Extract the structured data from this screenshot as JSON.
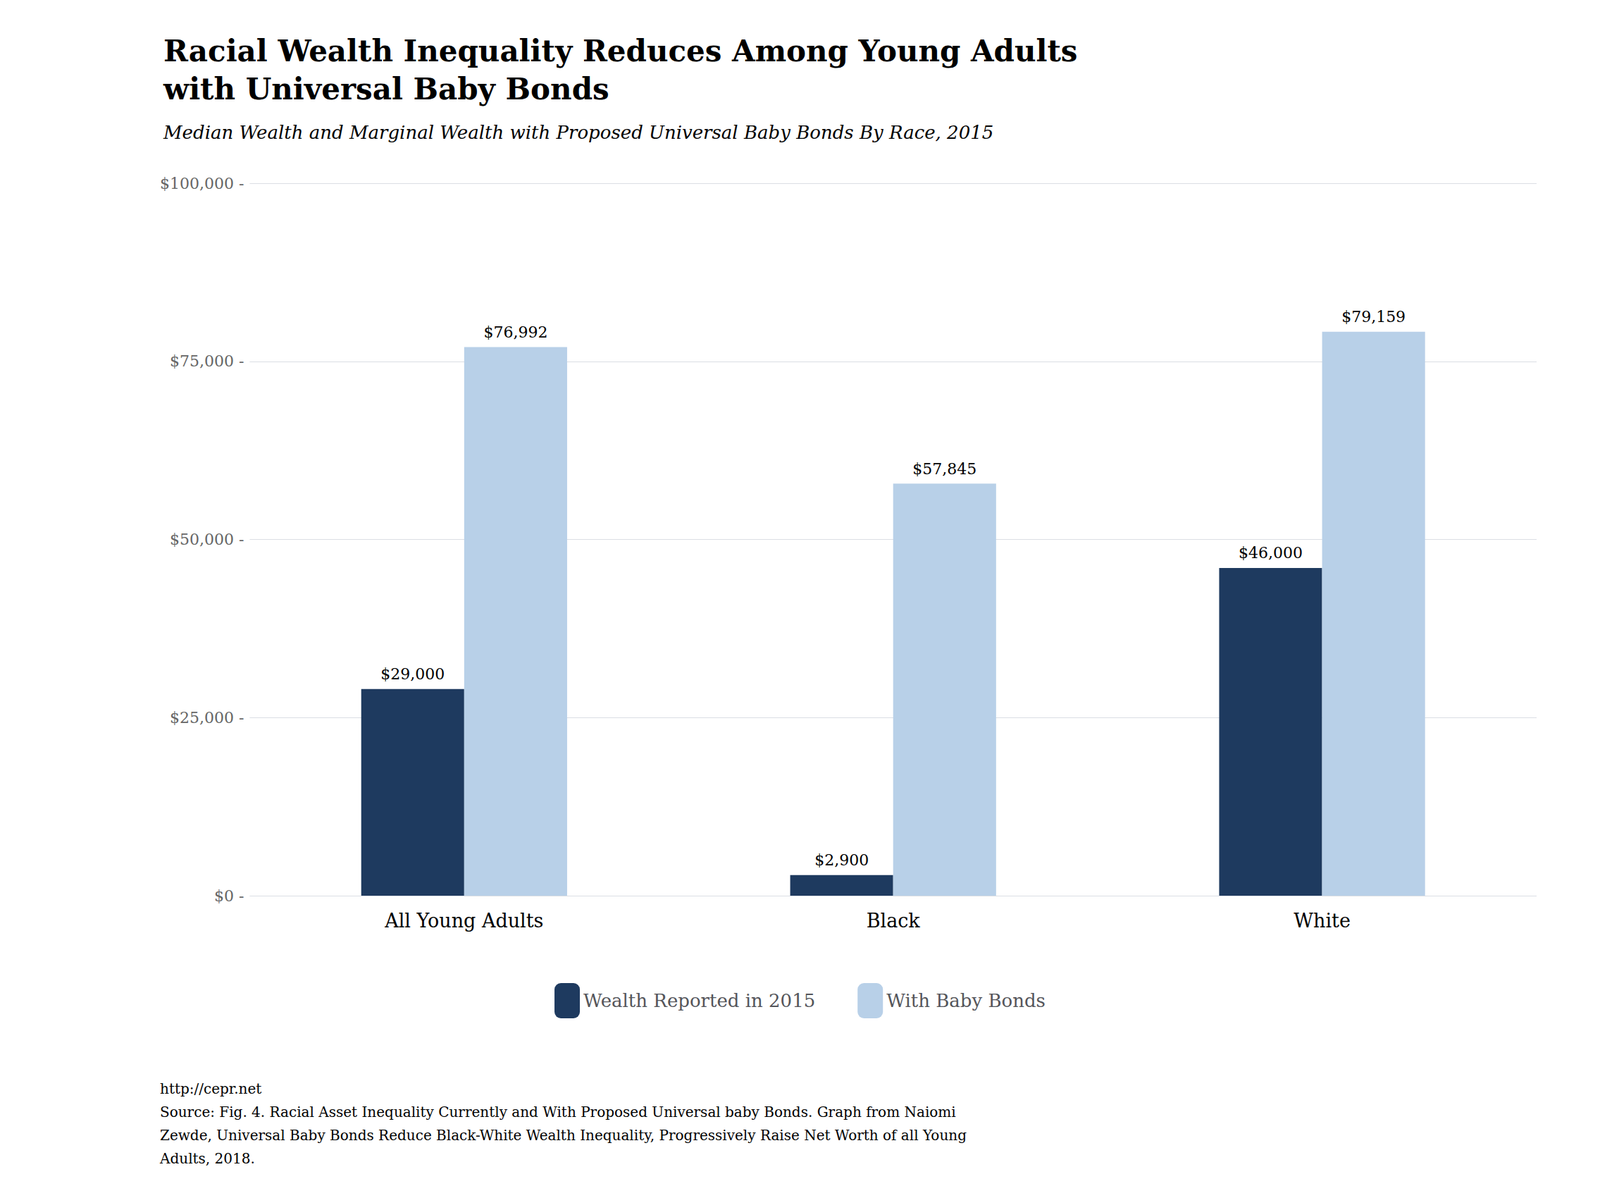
{
  "chart_data": {
    "type": "bar",
    "title": "Racial Wealth Inequality Reduces Among Young Adults\nwith Universal Baby Bonds",
    "subtitle": "Median Wealth and Marginal Wealth with Proposed Universal Baby Bonds By Race, 2015",
    "categories": [
      "All Young Adults",
      "Black",
      "White"
    ],
    "series": [
      {
        "name": "Wealth Reported in 2015",
        "color": "#1e3a5f",
        "values": [
          29000,
          2900,
          46000
        ],
        "value_labels": [
          "$29,000",
          "$2,900",
          "$46,000"
        ]
      },
      {
        "name": "With Baby Bonds",
        "color": "#b8d0e8",
        "values": [
          76992,
          57845,
          79159
        ],
        "value_labels": [
          "$76,992",
          "$57,845",
          "$79,159"
        ]
      }
    ],
    "ylim": [
      0,
      100000
    ],
    "yticks": [
      {
        "value": 0,
        "label": "$0 -"
      },
      {
        "value": 25000,
        "label": "$25,000 -"
      },
      {
        "value": 50000,
        "label": "$50,000 -"
      },
      {
        "value": 75000,
        "label": "$75,000 -"
      },
      {
        "value": 100000,
        "label": "$100,000 -"
      }
    ],
    "grid": true,
    "legend": "bottom",
    "data_labels": true,
    "annotations": [
      "http://cepr.net\nSource: Fig. 4. Racial Asset Inequality Currently and With Proposed Universal baby Bonds. Graph from Naiomi\nZewde, Universal Baby Bonds Reduce Black-White Wealth Inequality, Progressively Raise Net Worth of all Young\nAdults, 2018."
    ]
  }
}
